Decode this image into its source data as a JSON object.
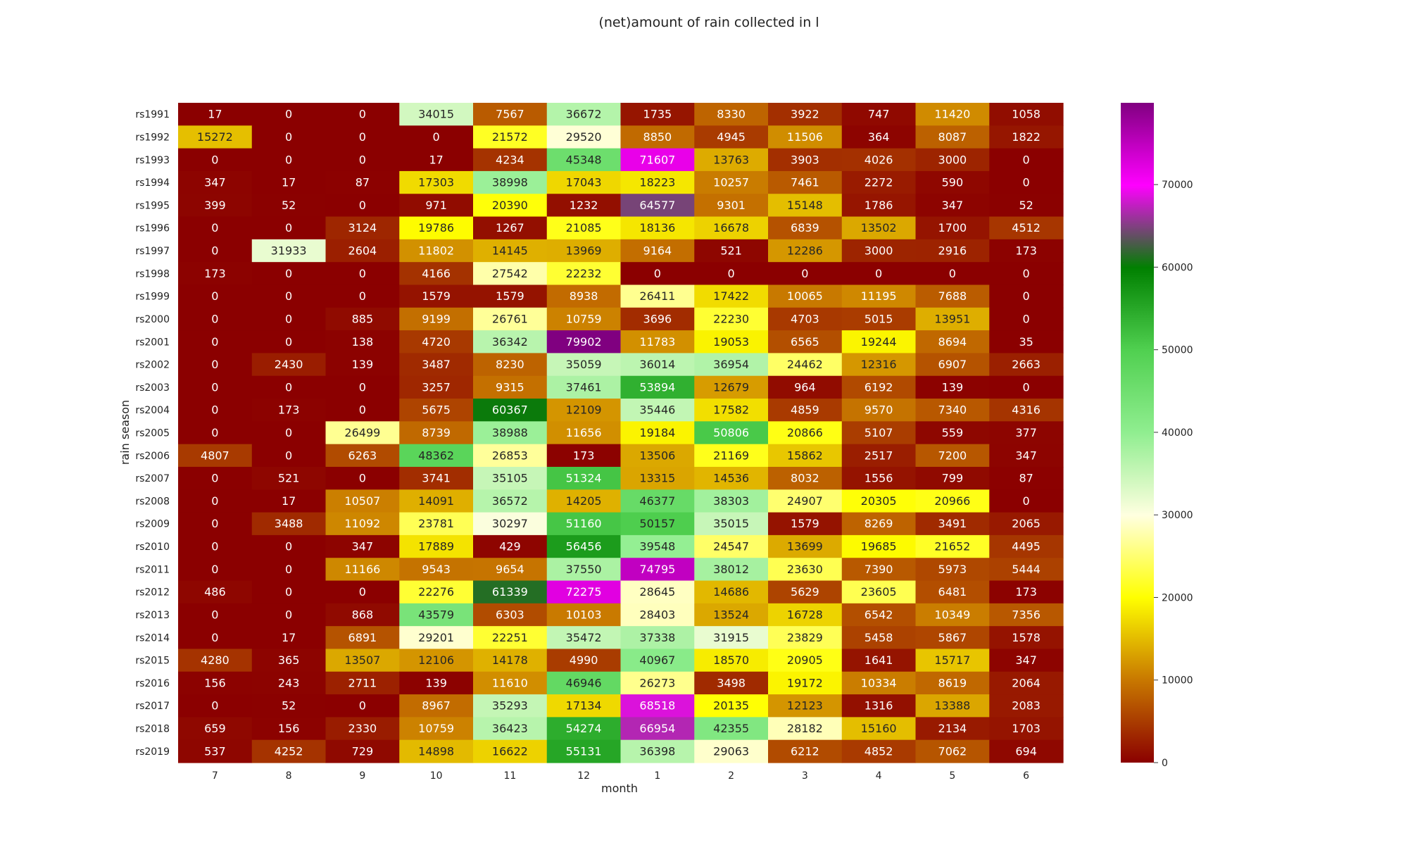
{
  "chart_data": {
    "type": "heatmap",
    "title": "(net)amount of rain collected in l",
    "xlabel": "month",
    "ylabel": "rain season",
    "x_categories": [
      "7",
      "8",
      "9",
      "10",
      "11",
      "12",
      "1",
      "2",
      "3",
      "4",
      "5",
      "6"
    ],
    "y_categories": [
      "rs1991",
      "rs1992",
      "rs1993",
      "rs1994",
      "rs1995",
      "rs1996",
      "rs1997",
      "rs1998",
      "rs1999",
      "rs2000",
      "rs2001",
      "rs2002",
      "rs2003",
      "rs2004",
      "rs2005",
      "rs2006",
      "rs2007",
      "rs2008",
      "rs2009",
      "rs2010",
      "rs2011",
      "rs2012",
      "rs2013",
      "rs2014",
      "rs2015",
      "rs2016",
      "rs2017",
      "rs2018",
      "rs2019"
    ],
    "values": [
      [
        17,
        0,
        0,
        34015,
        7567,
        36672,
        1735,
        8330,
        3922,
        747,
        11420,
        1058
      ],
      [
        15272,
        0,
        0,
        0,
        21572,
        29520,
        8850,
        4945,
        11506,
        364,
        8087,
        1822
      ],
      [
        0,
        0,
        0,
        17,
        4234,
        45348,
        71607,
        13763,
        3903,
        4026,
        3000,
        0
      ],
      [
        347,
        17,
        87,
        17303,
        38998,
        17043,
        18223,
        10257,
        7461,
        2272,
        590,
        0
      ],
      [
        399,
        52,
        0,
        971,
        20390,
        1232,
        64577,
        9301,
        15148,
        1786,
        347,
        52
      ],
      [
        0,
        0,
        3124,
        19786,
        1267,
        21085,
        18136,
        16678,
        6839,
        13502,
        1700,
        4512
      ],
      [
        0,
        31933,
        2604,
        11802,
        14145,
        13969,
        9164,
        521,
        12286,
        3000,
        2916,
        173
      ],
      [
        173,
        0,
        0,
        4166,
        27542,
        22232,
        0,
        0,
        0,
        0,
        0,
        0
      ],
      [
        0,
        0,
        0,
        1579,
        1579,
        8938,
        26411,
        17422,
        10065,
        11195,
        7688,
        0
      ],
      [
        0,
        0,
        885,
        9199,
        26761,
        10759,
        3696,
        22230,
        4703,
        5015,
        13951,
        0
      ],
      [
        0,
        0,
        138,
        4720,
        36342,
        79902,
        11783,
        19053,
        6565,
        19244,
        8694,
        35
      ],
      [
        0,
        2430,
        139,
        3487,
        8230,
        35059,
        36014,
        36954,
        24462,
        12316,
        6907,
        2663
      ],
      [
        0,
        0,
        0,
        3257,
        9315,
        37461,
        53894,
        12679,
        964,
        6192,
        139,
        0
      ],
      [
        0,
        173,
        0,
        5675,
        60367,
        12109,
        35446,
        17582,
        4859,
        9570,
        7340,
        4316
      ],
      [
        0,
        0,
        26499,
        8739,
        38988,
        11656,
        19184,
        50806,
        20866,
        5107,
        559,
        377
      ],
      [
        4807,
        0,
        6263,
        48362,
        26853,
        173,
        13506,
        21169,
        15862,
        2517,
        7200,
        347
      ],
      [
        0,
        521,
        0,
        3741,
        35105,
        51324,
        13315,
        14536,
        8032,
        1556,
        799,
        87
      ],
      [
        0,
        17,
        10507,
        14091,
        36572,
        14205,
        46377,
        38303,
        24907,
        20305,
        20966,
        0
      ],
      [
        0,
        3488,
        11092,
        23781,
        30297,
        51160,
        50157,
        35015,
        1579,
        8269,
        3491,
        2065
      ],
      [
        0,
        0,
        347,
        17889,
        429,
        56456,
        39548,
        24547,
        13699,
        19685,
        21652,
        4495
      ],
      [
        0,
        0,
        11166,
        9543,
        9654,
        37550,
        74795,
        38012,
        23630,
        7390,
        5973,
        5444
      ],
      [
        486,
        0,
        0,
        22276,
        61339,
        72275,
        28645,
        14686,
        5629,
        23605,
        6481,
        173
      ],
      [
        0,
        0,
        868,
        43579,
        6303,
        10103,
        28403,
        13524,
        16728,
        6542,
        10349,
        7356
      ],
      [
        0,
        17,
        6891,
        29201,
        22251,
        35472,
        37338,
        31915,
        23829,
        5458,
        5867,
        1578
      ],
      [
        4280,
        365,
        13507,
        12106,
        14178,
        4990,
        40967,
        18570,
        20905,
        1641,
        15717,
        347
      ],
      [
        156,
        243,
        2711,
        139,
        11610,
        46946,
        26273,
        3498,
        19172,
        10334,
        8619,
        2064
      ],
      [
        0,
        52,
        0,
        8967,
        35293,
        17134,
        68518,
        20135,
        12123,
        1316,
        13388,
        2083
      ],
      [
        659,
        156,
        2330,
        10759,
        36423,
        54274,
        66954,
        42355,
        28182,
        15160,
        2134,
        1703
      ],
      [
        537,
        4252,
        729,
        14898,
        16622,
        55131,
        36398,
        29063,
        6212,
        4852,
        7062,
        694
      ]
    ],
    "colorbar": {
      "min": 0,
      "max": 79902,
      "ticks": [
        0,
        10000,
        20000,
        30000,
        40000,
        50000,
        60000,
        70000
      ]
    },
    "colorscale": [
      "#8b0000",
      "#c87800",
      "#ffff00",
      "#ffffe0",
      "#90ee90",
      "#50d050",
      "#008000",
      "#ff00ff",
      "#800080"
    ],
    "grid": false,
    "legend": "colorbar-right"
  }
}
